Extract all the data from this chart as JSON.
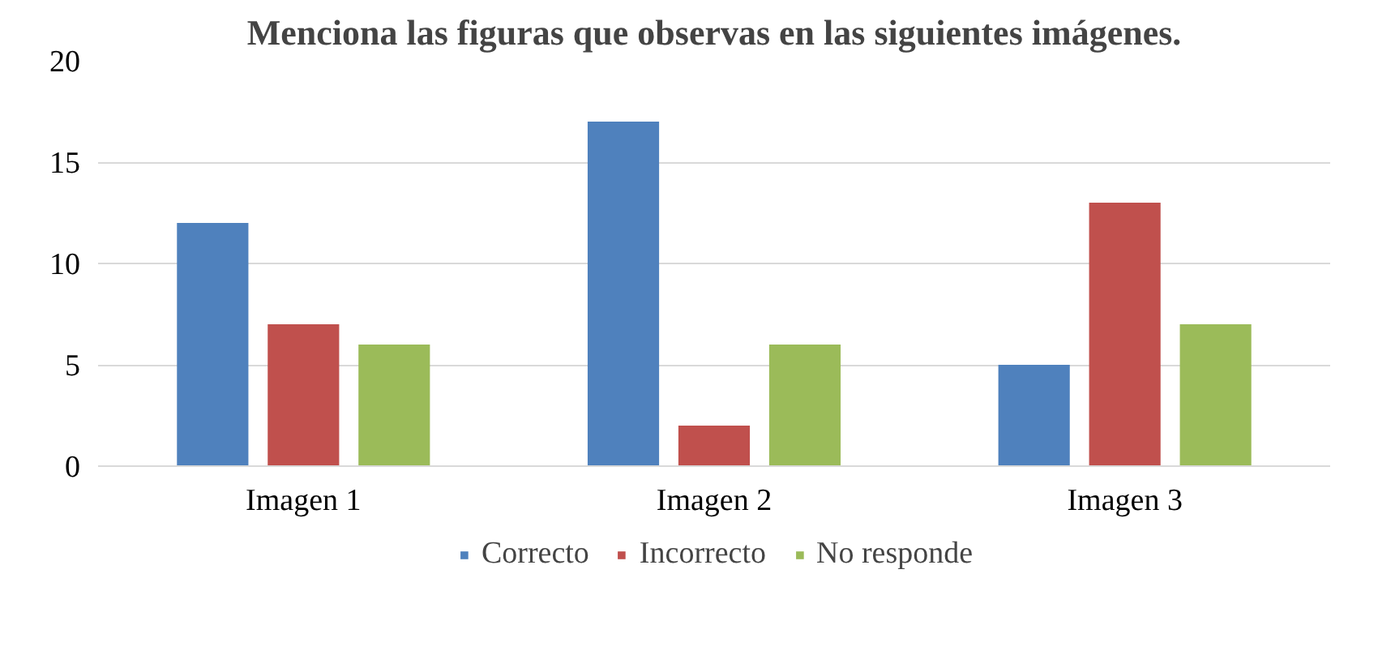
{
  "chart_data": {
    "type": "bar",
    "title": "Menciona las figuras que observas en las siguientes imágenes.",
    "categories": [
      "Imagen 1",
      "Imagen 2",
      "Imagen 3"
    ],
    "series": [
      {
        "name": "Correcto",
        "color": "#4f81bd",
        "values": [
          12,
          17,
          5
        ]
      },
      {
        "name": "Incorrecto",
        "color": "#c0504d",
        "values": [
          7,
          2,
          13
        ]
      },
      {
        "name": "No responde",
        "color": "#9bbb59",
        "values": [
          6,
          6,
          7
        ]
      }
    ],
    "ylim": [
      0,
      20
    ],
    "yticks": [
      0,
      5,
      10,
      15,
      20
    ],
    "grid": "y",
    "legend": "bottom"
  }
}
